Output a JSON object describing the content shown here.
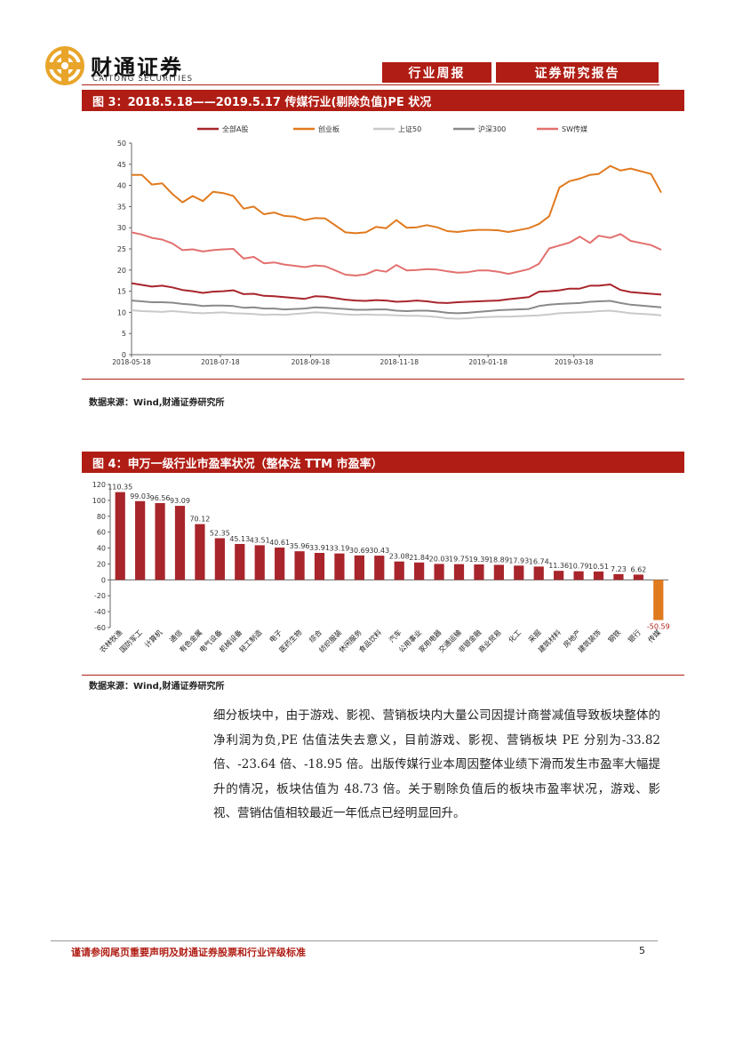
{
  "header": {
    "logo_cn": "财通证券",
    "logo_en": "CAITONG SECURITIES",
    "tag1": "行业周报",
    "tag2": "证券研究报告"
  },
  "figure3": {
    "title": "图 3：2018.5.18——2019.5.17 传媒行业(剔除负值)PE 状况",
    "source": "数据来源：Wind,财通证券研究所",
    "chart_data": {
      "type": "line",
      "x": [
        "2018-05-18",
        "2018-05-25",
        "2018-06-01",
        "2018-06-08",
        "2018-06-15",
        "2018-06-22",
        "2018-06-29",
        "2018-07-06",
        "2018-07-13",
        "2018-07-20",
        "2018-07-27",
        "2018-08-03",
        "2018-08-10",
        "2018-08-17",
        "2018-08-24",
        "2018-08-31",
        "2018-09-07",
        "2018-09-14",
        "2018-09-21",
        "2018-09-28",
        "2018-10-12",
        "2018-10-19",
        "2018-10-26",
        "2018-11-02",
        "2018-11-09",
        "2018-11-16",
        "2018-11-23",
        "2018-11-30",
        "2018-12-07",
        "2018-12-14",
        "2018-12-21",
        "2018-12-28",
        "2019-01-04",
        "2019-01-11",
        "2019-01-18",
        "2019-01-25",
        "2019-02-01",
        "2019-02-15",
        "2019-02-22",
        "2019-03-01",
        "2019-03-08",
        "2019-03-15",
        "2019-03-22",
        "2019-03-29",
        "2019-04-04",
        "2019-04-12",
        "2019-04-19",
        "2019-04-26",
        "2019-05-10",
        "2019-05-17"
      ],
      "x_ticks": [
        "2018-05-18",
        "2018-07-18",
        "2018-09-18",
        "2018-11-18",
        "2019-01-18",
        "2019-03-18"
      ],
      "ylim": [
        0,
        50
      ],
      "yticks": [
        0,
        5,
        10,
        15,
        20,
        25,
        30,
        35,
        40,
        45,
        50
      ],
      "legend_position": "top",
      "series": [
        {
          "name": "全部A股",
          "color": "#a8252b",
          "values": [
            16.9,
            16.5,
            16.1,
            16.3,
            15.9,
            15.3,
            15.0,
            14.6,
            14.9,
            15.0,
            15.2,
            14.3,
            14.4,
            13.9,
            13.8,
            13.6,
            13.4,
            13.2,
            13.8,
            13.7,
            13.0,
            12.8,
            12.7,
            12.9,
            12.8,
            12.5,
            12.6,
            12.8,
            12.6,
            12.3,
            12.2,
            12.4,
            12.5,
            12.6,
            12.7,
            12.8,
            13.1,
            13.6,
            14.9,
            15.0,
            15.2,
            15.6,
            15.6,
            16.3,
            16.3,
            16.6,
            15.3,
            14.8,
            14.4,
            14.2
          ]
        },
        {
          "name": "创业板",
          "color": "#e07a1f",
          "values": [
            42.5,
            42.5,
            40.2,
            40.5,
            38.0,
            36.0,
            37.5,
            36.3,
            38.5,
            38.2,
            37.5,
            34.5,
            35.0,
            33.2,
            33.6,
            32.8,
            32.6,
            31.8,
            32.3,
            32.2,
            28.9,
            28.7,
            28.9,
            30.2,
            29.9,
            31.8,
            30.0,
            30.1,
            30.6,
            30.1,
            29.2,
            29.0,
            29.3,
            29.5,
            29.5,
            29.4,
            29.0,
            29.9,
            30.9,
            32.7,
            39.5,
            41.0,
            41.6,
            42.5,
            42.7,
            44.6,
            43.5,
            44.0,
            42.7,
            38.3
          ]
        },
        {
          "name": "上证50",
          "color": "#c9c9c9",
          "values": [
            10.5,
            10.3,
            10.2,
            10.1,
            10.3,
            10.1,
            9.9,
            9.8,
            9.9,
            10.0,
            9.8,
            9.7,
            9.6,
            9.4,
            9.5,
            9.4,
            9.6,
            9.8,
            10.0,
            9.9,
            9.5,
            9.4,
            9.5,
            9.4,
            9.4,
            9.3,
            9.2,
            9.2,
            9.1,
            8.9,
            8.6,
            8.5,
            8.6,
            8.8,
            8.9,
            9.0,
            9.0,
            9.2,
            9.3,
            9.5,
            9.8,
            9.9,
            10.0,
            10.1,
            10.3,
            10.4,
            10.1,
            9.8,
            9.5,
            9.3
          ]
        },
        {
          "name": "沪深300",
          "color": "#8a8a8a",
          "values": [
            12.8,
            12.6,
            12.4,
            12.4,
            12.3,
            12.0,
            11.8,
            11.5,
            11.6,
            11.6,
            11.5,
            11.1,
            11.2,
            10.9,
            10.9,
            10.7,
            10.8,
            10.9,
            11.2,
            11.1,
            10.8,
            10.6,
            10.6,
            10.7,
            10.7,
            10.4,
            10.3,
            10.4,
            10.4,
            10.2,
            9.9,
            9.8,
            9.9,
            10.1,
            10.3,
            10.5,
            10.6,
            10.8,
            11.5,
            11.8,
            12.0,
            12.1,
            12.2,
            12.5,
            12.6,
            12.7,
            12.2,
            11.8,
            11.4,
            11.2
          ]
        },
        {
          "name": "SW传媒",
          "color": "#e2706f",
          "values": [
            28.9,
            28.4,
            27.6,
            27.2,
            26.3,
            24.7,
            24.9,
            24.4,
            24.7,
            24.9,
            25.0,
            22.7,
            23.1,
            21.6,
            21.8,
            21.3,
            21.0,
            20.7,
            21.1,
            20.9,
            18.9,
            18.7,
            19.0,
            20.0,
            19.6,
            21.2,
            19.9,
            20.0,
            20.2,
            20.1,
            19.7,
            19.4,
            19.5,
            19.9,
            19.9,
            19.6,
            19.1,
            20.2,
            21.5,
            25.1,
            25.8,
            26.5,
            27.9,
            26.4,
            28.1,
            27.6,
            28.5,
            26.9,
            25.9,
            24.8
          ]
        }
      ]
    }
  },
  "figure4": {
    "title": "图 4：申万一级行业市盈率状况（整体法 TTM 市盈率）",
    "source": "数据来源：Wind,财通证券研究所",
    "chart_data": {
      "type": "bar",
      "ylim": [
        -60,
        120
      ],
      "yticks": [
        -60,
        -40,
        -20,
        0,
        20,
        40,
        60,
        80,
        100,
        120
      ],
      "categories": [
        "农林牧渔",
        "国防军工",
        "计算机",
        "通信",
        "有色金属",
        "电气设备",
        "机械设备",
        "轻工制造",
        "电子",
        "医药生物",
        "综合",
        "纺织服装",
        "休闲服务",
        "食品饮料",
        "汽车",
        "公用事业",
        "家用电器",
        "交通运输",
        "非银金融",
        "商业贸易",
        "化工",
        "采掘",
        "建筑材料",
        "房地产",
        "建筑装饰",
        "钢铁",
        "银行",
        "传媒"
      ],
      "values": [
        110.35,
        99.03,
        96.56,
        93.09,
        70.12,
        52.35,
        45.13,
        43.51,
        40.61,
        35.96,
        33.91,
        33.19,
        30.69,
        30.43,
        23.08,
        21.84,
        20.03,
        19.75,
        19.39,
        18.89,
        17.93,
        16.74,
        11.36,
        10.79,
        10.51,
        7.23,
        6.62,
        -50.59
      ],
      "labels": [
        "110.35",
        "99.03",
        "96.56",
        "93.09",
        "70.12",
        "52.35",
        "45.13",
        "43.51",
        "40.61",
        "35.96",
        "33.91",
        "33.19",
        "30.69",
        "30.43",
        "23.08",
        "21.84",
        "20.03",
        "19.75",
        "19.39",
        "18.89",
        "17.93",
        "16.74",
        "11.36",
        "10.79",
        "10.51",
        "7.23",
        "6.62",
        "-50.59"
      ],
      "colors": {
        "positive": "#a8252b",
        "negative": "#e07a1f"
      }
    }
  },
  "paragraph": "细分板块中，由于游戏、影视、营销板块内大量公司因提计商誉减值导致板块整体的净利润为负,PE 估值法失去意义，目前游戏、影视、营销板块 PE 分别为-33.82 倍、-23.64 倍、-18.95 倍。出版传媒行业本周因整体业绩下滑而发生市盈率大幅提升的情况，板块估值为 48.73 倍。关于剔除负值后的板块市盈率状况，游戏、影视、营销估值相较最近一年低点已经明显回升。",
  "footer": {
    "disclaimer": "谨请参阅尾页重要声明及财通证券股票和行业评级标准",
    "page": "5"
  },
  "colors": {
    "brand": "#b01d14",
    "logo": "#e8a52a"
  }
}
